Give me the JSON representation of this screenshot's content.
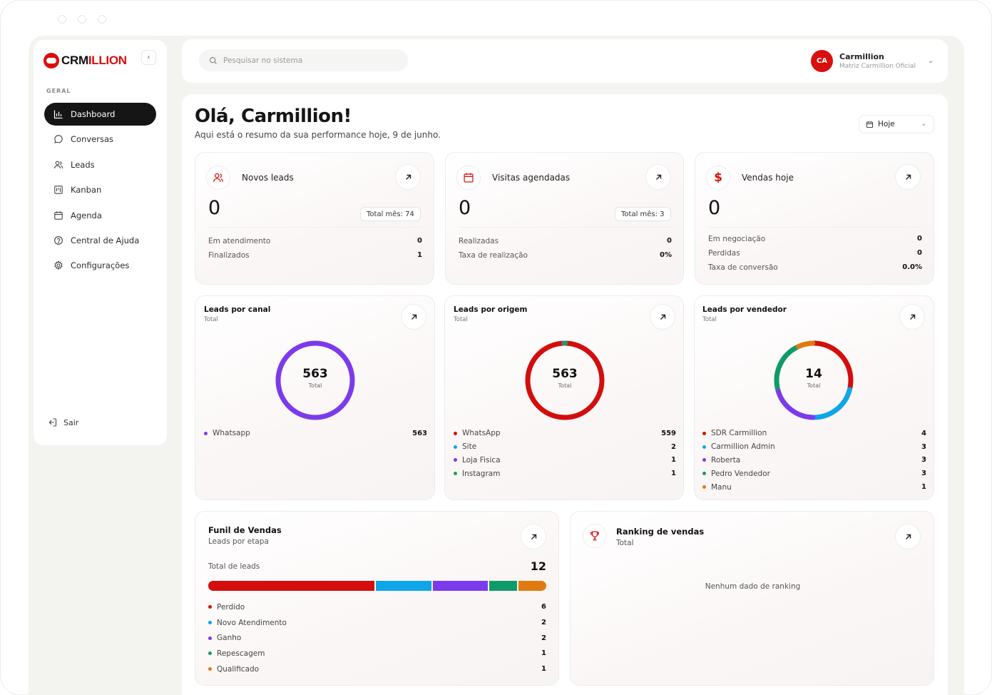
{
  "brand": {
    "crm": "CRM",
    "rest": "ILLION",
    "accent": "#d90f0f"
  },
  "sidebar": {
    "section": "GERAL",
    "items": [
      {
        "label": "Dashboard",
        "icon": "chart-bar-icon",
        "active": true
      },
      {
        "label": "Conversas",
        "icon": "chat-bubble-icon",
        "active": false
      },
      {
        "label": "Leads",
        "icon": "users-icon",
        "active": false
      },
      {
        "label": "Kanban",
        "icon": "kanban-icon",
        "active": false
      },
      {
        "label": "Agenda",
        "icon": "calendar-icon",
        "active": false
      },
      {
        "label": "Central de Ajuda",
        "icon": "help-circle-icon",
        "active": false
      },
      {
        "label": "Configurações",
        "icon": "gear-icon",
        "active": false
      }
    ],
    "logout": "Sair"
  },
  "topbar": {
    "search_placeholder": "Pesquisar no sistema",
    "user": {
      "initials": "CA",
      "name": "Carmillion",
      "org": "Matriz Carmillion Oficial"
    }
  },
  "main": {
    "greeting": "Olá, Carmillion!",
    "subtitle": "Aqui está o resumo da sua performance hoje, 9 de junho.",
    "period": "Hoje"
  },
  "stats": {
    "leads": {
      "title": "Novos leads",
      "value": "0",
      "month": "Total mês: 74",
      "rows": [
        {
          "k": "Em atendimento",
          "v": "0"
        },
        {
          "k": "Finalizados",
          "v": "1"
        }
      ]
    },
    "visits": {
      "title": "Visitas agendadas",
      "value": "0",
      "month": "Total mês: 3",
      "rows": [
        {
          "k": "Realizadas",
          "v": "0"
        },
        {
          "k": "Taxa de realização",
          "v": "0%"
        }
      ]
    },
    "sales": {
      "title": "Vendas hoje",
      "value": "0",
      "rows": [
        {
          "k": "Em negociação",
          "v": "0"
        },
        {
          "k": "Perdidas",
          "v": "0"
        },
        {
          "k": "Taxa de conversão",
          "v": "0.0%"
        }
      ]
    }
  },
  "charts": {
    "canal": {
      "title": "Leads por canal",
      "sub": "Total",
      "total": "563",
      "total_label": "Total",
      "items": [
        {
          "name": "Whatsapp",
          "value": 563,
          "label": "563",
          "color": "#7c3aed"
        }
      ]
    },
    "origem": {
      "title": "Leads por origem",
      "sub": "Total",
      "total": "563",
      "total_label": "Total",
      "items": [
        {
          "name": "WhatsApp",
          "value": 559,
          "label": "559",
          "color": "#d40d0d"
        },
        {
          "name": "Site",
          "value": 2,
          "label": "2",
          "color": "#0ea5e9"
        },
        {
          "name": "Loja Fisica",
          "value": 1,
          "label": "1",
          "color": "#7c3aed"
        },
        {
          "name": "Instagram",
          "value": 1,
          "label": "1",
          "color": "#16a34a"
        }
      ]
    },
    "vendedor": {
      "title": "Leads por vendedor",
      "sub": "Total",
      "total": "14",
      "total_label": "Total",
      "items": [
        {
          "name": "SDR Carmillion",
          "value": 4,
          "label": "4",
          "color": "#d40d0d"
        },
        {
          "name": "Carmillion Admin",
          "value": 3,
          "label": "3",
          "color": "#0ea5e9"
        },
        {
          "name": "Roberta",
          "value": 3,
          "label": "3",
          "color": "#7c3aed"
        },
        {
          "name": "Pedro Vendedor",
          "value": 3,
          "label": "3",
          "color": "#0f9a6a"
        },
        {
          "name": "Manu",
          "value": 1,
          "label": "1",
          "color": "#e07a10"
        }
      ]
    }
  },
  "funnel": {
    "title": "Funil de Vendas",
    "sub": "Leads por etapa",
    "total_label": "Total de leads",
    "total": "12",
    "stages": [
      {
        "name": "Perdido",
        "value": 6,
        "label": "6",
        "color": "#d40d0d"
      },
      {
        "name": "Novo Atendimento",
        "value": 2,
        "label": "2",
        "color": "#0ea5e9"
      },
      {
        "name": "Ganho",
        "value": 2,
        "label": "2",
        "color": "#7c3aed"
      },
      {
        "name": "Repescagem",
        "value": 1,
        "label": "1",
        "color": "#0f9a6a"
      },
      {
        "name": "Qualificado",
        "value": 1,
        "label": "1",
        "color": "#e07a10"
      }
    ]
  },
  "ranking": {
    "title": "Ranking de vendas",
    "sub": "Total",
    "empty": "Nenhum dado de ranking"
  }
}
